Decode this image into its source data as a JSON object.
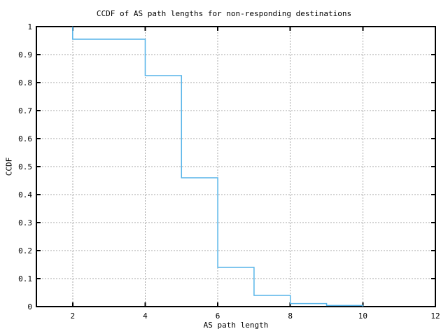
{
  "chart_data": {
    "type": "line",
    "subtype": "ccdf-step-function",
    "title": "CCDF of AS path lengths for non-responding destinations",
    "xlabel": "AS path length",
    "ylabel": "CCDF",
    "xlim": [
      1,
      12
    ],
    "ylim": [
      0,
      1
    ],
    "xticks": [
      2,
      4,
      6,
      8,
      10,
      12
    ],
    "xtick_labels": [
      "2",
      "4",
      "6",
      "8",
      "10",
      "12"
    ],
    "yticks": [
      0,
      0.1,
      0.2,
      0.3,
      0.4,
      0.5,
      0.6,
      0.7,
      0.8,
      0.9,
      1
    ],
    "ytick_labels": [
      "0",
      "0.1",
      "0.2",
      "0.3",
      "0.4",
      "0.5",
      "0.6",
      "0.7",
      "0.8",
      "0.9",
      "1"
    ],
    "grid": true,
    "legend_position": "none",
    "series": [
      {
        "name": "CCDF of AS path length",
        "start_value": 1.0,
        "step_x": [
          2,
          4,
          5,
          6,
          7,
          8,
          9,
          10
        ],
        "value_after_step": [
          0.955,
          0.825,
          0.46,
          0.14,
          0.04,
          0.011,
          0.004,
          0.0
        ],
        "color": "#56b4e9"
      }
    ],
    "colors": {
      "axis": "#000000",
      "grid": "#a8a8a8",
      "background": "#ffffff"
    }
  }
}
